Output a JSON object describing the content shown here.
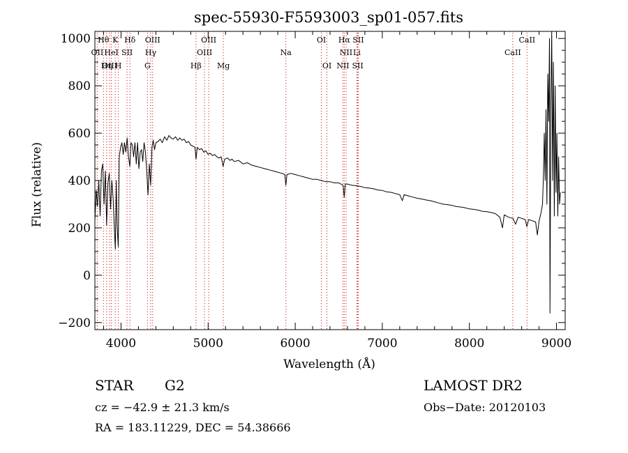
{
  "chart_data": {
    "type": "line",
    "title": "spec-55930-F5593003_sp01-057.fits",
    "xlabel": "Wavelength (Å)",
    "ylabel": "Flux (relative)",
    "xlim": [
      3700,
      9100
    ],
    "ylim": [
      -230,
      1030
    ],
    "xticks": [
      4000,
      5000,
      6000,
      7000,
      8000,
      9000
    ],
    "yticks": [
      -200,
      0,
      200,
      400,
      600,
      800,
      1000
    ],
    "x_minor_step": 200,
    "y_minor_step": 50,
    "grid": false,
    "series": [
      {
        "color": "#000000",
        "points": [
          [
            3700,
            230
          ],
          [
            3715,
            360
          ],
          [
            3730,
            290
          ],
          [
            3745,
            400
          ],
          [
            3760,
            250
          ],
          [
            3775,
            440
          ],
          [
            3790,
            470
          ],
          [
            3805,
            300
          ],
          [
            3820,
            440
          ],
          [
            3835,
            210
          ],
          [
            3850,
            390
          ],
          [
            3865,
            430
          ],
          [
            3880,
            280
          ],
          [
            3895,
            400
          ],
          [
            3910,
            320
          ],
          [
            3925,
            180
          ],
          [
            3935,
            110
          ],
          [
            3945,
            400
          ],
          [
            3955,
            210
          ],
          [
            3968,
            120
          ],
          [
            3980,
            500
          ],
          [
            3995,
            540
          ],
          [
            4010,
            560
          ],
          [
            4025,
            510
          ],
          [
            4040,
            560
          ],
          [
            4055,
            520
          ],
          [
            4070,
            580
          ],
          [
            4085,
            500
          ],
          [
            4101,
            460
          ],
          [
            4115,
            560
          ],
          [
            4130,
            550
          ],
          [
            4145,
            500
          ],
          [
            4160,
            560
          ],
          [
            4175,
            470
          ],
          [
            4190,
            560
          ],
          [
            4205,
            450
          ],
          [
            4220,
            520
          ],
          [
            4235,
            530
          ],
          [
            4250,
            480
          ],
          [
            4265,
            560
          ],
          [
            4280,
            520
          ],
          [
            4295,
            440
          ],
          [
            4310,
            340
          ],
          [
            4325,
            470
          ],
          [
            4340,
            380
          ],
          [
            4355,
            540
          ],
          [
            4370,
            570
          ],
          [
            4385,
            530
          ],
          [
            4400,
            560
          ],
          [
            4425,
            565
          ],
          [
            4450,
            575
          ],
          [
            4475,
            560
          ],
          [
            4500,
            585
          ],
          [
            4525,
            570
          ],
          [
            4550,
            590
          ],
          [
            4575,
            580
          ],
          [
            4600,
            575
          ],
          [
            4625,
            585
          ],
          [
            4650,
            570
          ],
          [
            4675,
            580
          ],
          [
            4700,
            570
          ],
          [
            4725,
            575
          ],
          [
            4750,
            560
          ],
          [
            4775,
            565
          ],
          [
            4800,
            550
          ],
          [
            4825,
            545
          ],
          [
            4850,
            540
          ],
          [
            4861,
            490
          ],
          [
            4875,
            540
          ],
          [
            4900,
            530
          ],
          [
            4925,
            535
          ],
          [
            4950,
            520
          ],
          [
            4975,
            525
          ],
          [
            5000,
            510
          ],
          [
            5025,
            515
          ],
          [
            5050,
            505
          ],
          [
            5075,
            510
          ],
          [
            5100,
            500
          ],
          [
            5125,
            495
          ],
          [
            5150,
            500
          ],
          [
            5172,
            460
          ],
          [
            5190,
            490
          ],
          [
            5225,
            495
          ],
          [
            5250,
            485
          ],
          [
            5275,
            490
          ],
          [
            5300,
            480
          ],
          [
            5350,
            485
          ],
          [
            5400,
            470
          ],
          [
            5450,
            475
          ],
          [
            5500,
            465
          ],
          [
            5550,
            460
          ],
          [
            5600,
            455
          ],
          [
            5650,
            450
          ],
          [
            5700,
            445
          ],
          [
            5750,
            440
          ],
          [
            5800,
            435
          ],
          [
            5850,
            430
          ],
          [
            5880,
            425
          ],
          [
            5893,
            380
          ],
          [
            5905,
            425
          ],
          [
            5950,
            430
          ],
          [
            6000,
            425
          ],
          [
            6050,
            420
          ],
          [
            6100,
            415
          ],
          [
            6150,
            410
          ],
          [
            6200,
            405
          ],
          [
            6250,
            405
          ],
          [
            6300,
            400
          ],
          [
            6350,
            395
          ],
          [
            6400,
            395
          ],
          [
            6450,
            390
          ],
          [
            6500,
            390
          ],
          [
            6550,
            380
          ],
          [
            6563,
            330
          ],
          [
            6575,
            385
          ],
          [
            6600,
            385
          ],
          [
            6650,
            380
          ],
          [
            6700,
            378
          ],
          [
            6750,
            375
          ],
          [
            6800,
            370
          ],
          [
            6850,
            368
          ],
          [
            6900,
            365
          ],
          [
            6950,
            360
          ],
          [
            7000,
            358
          ],
          [
            7050,
            352
          ],
          [
            7100,
            350
          ],
          [
            7150,
            345
          ],
          [
            7200,
            340
          ],
          [
            7230,
            315
          ],
          [
            7250,
            340
          ],
          [
            7300,
            335
          ],
          [
            7350,
            330
          ],
          [
            7400,
            325
          ],
          [
            7450,
            322
          ],
          [
            7500,
            318
          ],
          [
            7550,
            315
          ],
          [
            7600,
            310
          ],
          [
            7650,
            305
          ],
          [
            7700,
            300
          ],
          [
            7750,
            298
          ],
          [
            7800,
            295
          ],
          [
            7850,
            290
          ],
          [
            7900,
            288
          ],
          [
            7950,
            285
          ],
          [
            8000,
            280
          ],
          [
            8050,
            278
          ],
          [
            8100,
            275
          ],
          [
            8150,
            270
          ],
          [
            8200,
            268
          ],
          [
            8250,
            265
          ],
          [
            8300,
            260
          ],
          [
            8350,
            245
          ],
          [
            8380,
            200
          ],
          [
            8400,
            255
          ],
          [
            8450,
            245
          ],
          [
            8500,
            240
          ],
          [
            8530,
            215
          ],
          [
            8560,
            245
          ],
          [
            8600,
            240
          ],
          [
            8640,
            235
          ],
          [
            8660,
            205
          ],
          [
            8680,
            235
          ],
          [
            8720,
            230
          ],
          [
            8760,
            225
          ],
          [
            8780,
            170
          ],
          [
            8800,
            230
          ],
          [
            8820,
            260
          ],
          [
            8840,
            300
          ],
          [
            8850,
            420
          ],
          [
            8860,
            600
          ],
          [
            8870,
            400
          ],
          [
            8880,
            700
          ],
          [
            8890,
            300
          ],
          [
            8900,
            850
          ],
          [
            8910,
            650
          ],
          [
            8920,
            1000
          ],
          [
            8925,
            -160
          ],
          [
            8935,
            700
          ],
          [
            8945,
            1030
          ],
          [
            8955,
            400
          ],
          [
            8965,
            900
          ],
          [
            8975,
            250
          ],
          [
            8985,
            800
          ],
          [
            8995,
            350
          ],
          [
            9005,
            600
          ],
          [
            9015,
            250
          ],
          [
            9025,
            500
          ],
          [
            9035,
            300
          ],
          [
            9045,
            350
          ]
        ]
      }
    ],
    "spectral_lines": [
      {
        "label": "Hθ",
        "x": 3798,
        "row": 0
      },
      {
        "label": "OII",
        "x": 3727,
        "row": 1
      },
      {
        "label": "OIII",
        "x": 3869,
        "row": 2
      },
      {
        "label": "K",
        "x": 3934,
        "row": 0
      },
      {
        "label": "HeI",
        "x": 3889,
        "row": 1
      },
      {
        "label": "Hη",
        "x": 3835,
        "row": 2
      },
      {
        "label": "SII",
        "x": 4069,
        "row": 1
      },
      {
        "label": "H",
        "x": 3969,
        "row": 2
      },
      {
        "label": "Hδ",
        "x": 4102,
        "row": 0
      },
      {
        "label": "OIII",
        "x": 4363,
        "row": 0
      },
      {
        "label": "Hγ",
        "x": 4341,
        "row": 1
      },
      {
        "label": "G",
        "x": 4304,
        "row": 2
      },
      {
        "label": "Hβ",
        "x": 4861,
        "row": 2
      },
      {
        "label": "OIII",
        "x": 5007,
        "row": 0
      },
      {
        "label": "OIII",
        "x": 4959,
        "row": 1
      },
      {
        "label": "Mg",
        "x": 5175,
        "row": 2
      },
      {
        "label": "Na",
        "x": 5893,
        "row": 1
      },
      {
        "label": "OI",
        "x": 6300,
        "row": 0
      },
      {
        "label": "OI",
        "x": 6364,
        "row": 2
      },
      {
        "label": "Hα",
        "x": 6563,
        "row": 0
      },
      {
        "label": "SII",
        "x": 6724,
        "row": 0
      },
      {
        "label": "NII",
        "x": 6584,
        "row": 1
      },
      {
        "label": "Li",
        "x": 6708,
        "row": 1
      },
      {
        "label": "NII",
        "x": 6548,
        "row": 2
      },
      {
        "label": "SII",
        "x": 6717,
        "row": 2
      },
      {
        "label": "CaII",
        "x": 8662,
        "row": 0
      },
      {
        "label": "CaII",
        "x": 8498,
        "row": 1
      }
    ]
  },
  "info": {
    "class": "STAR",
    "subclass": "G2",
    "redshift": "cz = −42.9 ± 21.3 km/s",
    "coords": "RA = 183.11229, DEC =  54.38666",
    "survey": "LAMOST DR2",
    "obs_date": "Obs−Date: 20120103"
  },
  "colors": {
    "line_marker": "#cc0000",
    "spectrum": "#000000"
  }
}
